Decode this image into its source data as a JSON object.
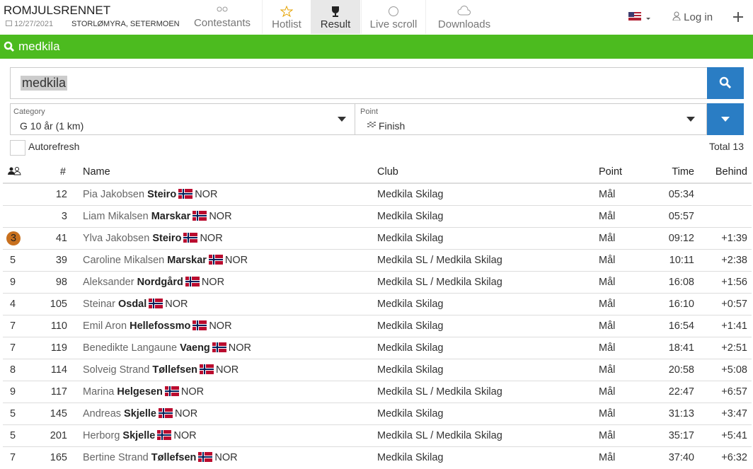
{
  "header": {
    "title": "ROMJULSRENNET",
    "date": "12/27/2021",
    "location": "STORLØMYRA, SETERMOEN",
    "nav": [
      "Contestants",
      "Hotlist",
      "Result",
      "Live scroll",
      "Downloads"
    ],
    "login": "Log in"
  },
  "search_bar": {
    "label": "medkila"
  },
  "search": {
    "value": "medkila"
  },
  "filters": {
    "category_label": "Category",
    "category_value": "G 10 år (1 km)",
    "point_label": "Point",
    "point_value": "Finish"
  },
  "autorefresh": "Autorefresh",
  "total": "Total 13",
  "table": {
    "columns": [
      "#",
      "Name",
      "Club",
      "Point",
      "Time",
      "Behind"
    ],
    "rows": [
      {
        "rank": null,
        "bib": 12,
        "first": "Pia Jakobsen",
        "last": "Steiro",
        "country": "NOR",
        "club": "Medkila Skilag",
        "point": "Mål",
        "time": "05:34",
        "behind": null
      },
      {
        "rank": null,
        "bib": 3,
        "first": "Liam Mikalsen",
        "last": "Marskar",
        "country": "NOR",
        "club": "Medkila Skilag",
        "point": "Mål",
        "time": "05:57",
        "behind": null
      },
      {
        "rank": 3,
        "bib": 41,
        "first": "Ylva Jakobsen",
        "last": "Steiro",
        "country": "NOR",
        "club": "Medkila Skilag",
        "point": "Mål",
        "time": "09:12",
        "behind": "+1:39"
      },
      {
        "rank": 5,
        "bib": 39,
        "first": "Caroline Mikalsen",
        "last": "Marskar",
        "country": "NOR",
        "club": "Medkila SL / Medkila Skilag",
        "point": "Mål",
        "time": "10:11",
        "behind": "+2:38"
      },
      {
        "rank": 9,
        "bib": 98,
        "first": "Aleksander",
        "last": "Nordgård",
        "country": "NOR",
        "club": "Medkila SL / Medkila Skilag",
        "point": "Mål",
        "time": "16:08",
        "behind": "+1:56"
      },
      {
        "rank": 4,
        "bib": 105,
        "first": "Steinar",
        "last": "Osdal",
        "country": "NOR",
        "club": "Medkila Skilag",
        "point": "Mål",
        "time": "16:10",
        "behind": "+0:57"
      },
      {
        "rank": 7,
        "bib": 110,
        "first": "Emil Aron",
        "last": "Hellefossmo",
        "country": "NOR",
        "club": "Medkila Skilag",
        "point": "Mål",
        "time": "16:54",
        "behind": "+1:41"
      },
      {
        "rank": 7,
        "bib": 119,
        "first": "Benedikte Langaune",
        "last": "Vaeng",
        "country": "NOR",
        "club": "Medkila Skilag",
        "point": "Mål",
        "time": "18:41",
        "behind": "+2:51"
      },
      {
        "rank": 8,
        "bib": 114,
        "first": "Solveig Strand",
        "last": "Tøllefsen",
        "country": "NOR",
        "club": "Medkila Skilag",
        "point": "Mål",
        "time": "20:58",
        "behind": "+5:08"
      },
      {
        "rank": 9,
        "bib": 117,
        "first": "Marina",
        "last": "Helgesen",
        "country": "NOR",
        "club": "Medkila SL / Medkila Skilag",
        "point": "Mål",
        "time": "22:47",
        "behind": "+6:57"
      },
      {
        "rank": 5,
        "bib": 145,
        "first": "Andreas",
        "last": "Skjelle",
        "country": "NOR",
        "club": "Medkila Skilag",
        "point": "Mål",
        "time": "31:13",
        "behind": "+3:47"
      },
      {
        "rank": 5,
        "bib": 201,
        "first": "Herborg",
        "last": "Skjelle",
        "country": "NOR",
        "club": "Medkila SL / Medkila Skilag",
        "point": "Mål",
        "time": "35:17",
        "behind": "+5:41"
      },
      {
        "rank": 7,
        "bib": 165,
        "first": "Bertine Strand",
        "last": "Tøllefsen",
        "country": "NOR",
        "club": "Medkila Skilag",
        "point": "Mål",
        "time": "37:40",
        "behind": "+6:32"
      }
    ]
  }
}
